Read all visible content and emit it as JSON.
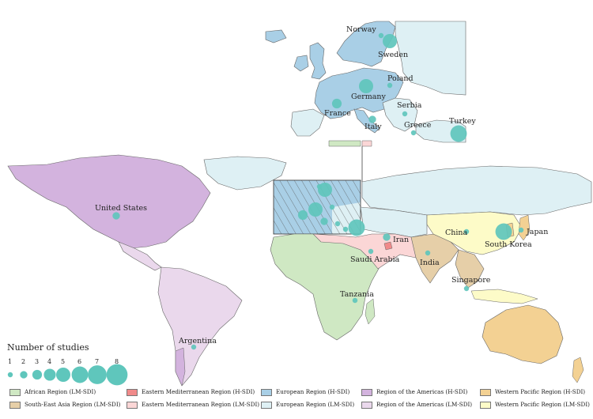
{
  "legend_title": "Number of studies",
  "size_legend": {
    "values": [
      "1",
      "2",
      "3",
      "4",
      "5",
      "6",
      "7",
      "8"
    ]
  },
  "country_labels": [
    {
      "key": "norway",
      "text": "Norway",
      "studies": 1
    },
    {
      "key": "sweden",
      "text": "Sweden",
      "studies": 5
    },
    {
      "key": "poland",
      "text": "Poland",
      "studies": 1
    },
    {
      "key": "germany",
      "text": "Germany",
      "studies": 5
    },
    {
      "key": "france",
      "text": "France",
      "studies": 3
    },
    {
      "key": "serbia",
      "text": "Serbia",
      "studies": 1
    },
    {
      "key": "italy",
      "text": "Italy",
      "studies": 2
    },
    {
      "key": "greece",
      "text": "Greece",
      "studies": 1
    },
    {
      "key": "turkey",
      "text": "Turkey",
      "studies": 6
    },
    {
      "key": "united_states",
      "text": "United States",
      "studies": 2
    },
    {
      "key": "iran",
      "text": "Iran",
      "studies": 2
    },
    {
      "key": "saudi_arabia",
      "text": "Saudi Arabia",
      "studies": 1
    },
    {
      "key": "china",
      "text": "China",
      "studies": 1
    },
    {
      "key": "japan",
      "text": "Japan",
      "studies": 1
    },
    {
      "key": "south_korea",
      "text": "South Korea",
      "studies": 6
    },
    {
      "key": "india",
      "text": "India",
      "studies": 1
    },
    {
      "key": "singapore",
      "text": "Singapore",
      "studies": 1
    },
    {
      "key": "tanzania",
      "text": "Tanzania",
      "studies": 1
    },
    {
      "key": "argentina",
      "text": "Argentina",
      "studies": 1
    }
  ],
  "region_legend": [
    {
      "label": "African Region (LM-SDI)",
      "color": "#cfe8c3"
    },
    {
      "label": "South-East Asia Region (LM-SDI)",
      "color": "#e6cfa8"
    },
    {
      "label": "Eastern Mediterranean Region (H-SDI)",
      "color": "#f08a8a"
    },
    {
      "label": "Eastern Mediterranean Region (LM-SDI)",
      "color": "#fbd6d6"
    },
    {
      "label": "European Region (H-SDI)",
      "color": "#a9cfe6"
    },
    {
      "label": "European Region (LM-SDI)",
      "color": "#def0f4"
    },
    {
      "label": "Region of the Americas (H-SDI)",
      "color": "#d3b3de"
    },
    {
      "label": "Region of the Americas (LM-SDI)",
      "color": "#ead8ec"
    },
    {
      "label": "Western Pacific Region (H-SDI)",
      "color": "#f3d193"
    },
    {
      "label": "Western Pacific Region (LM-SDI)",
      "color": "#fdfbc8"
    }
  ],
  "colors": {
    "bubble": "#5fc6bc",
    "border": "#666666"
  }
}
